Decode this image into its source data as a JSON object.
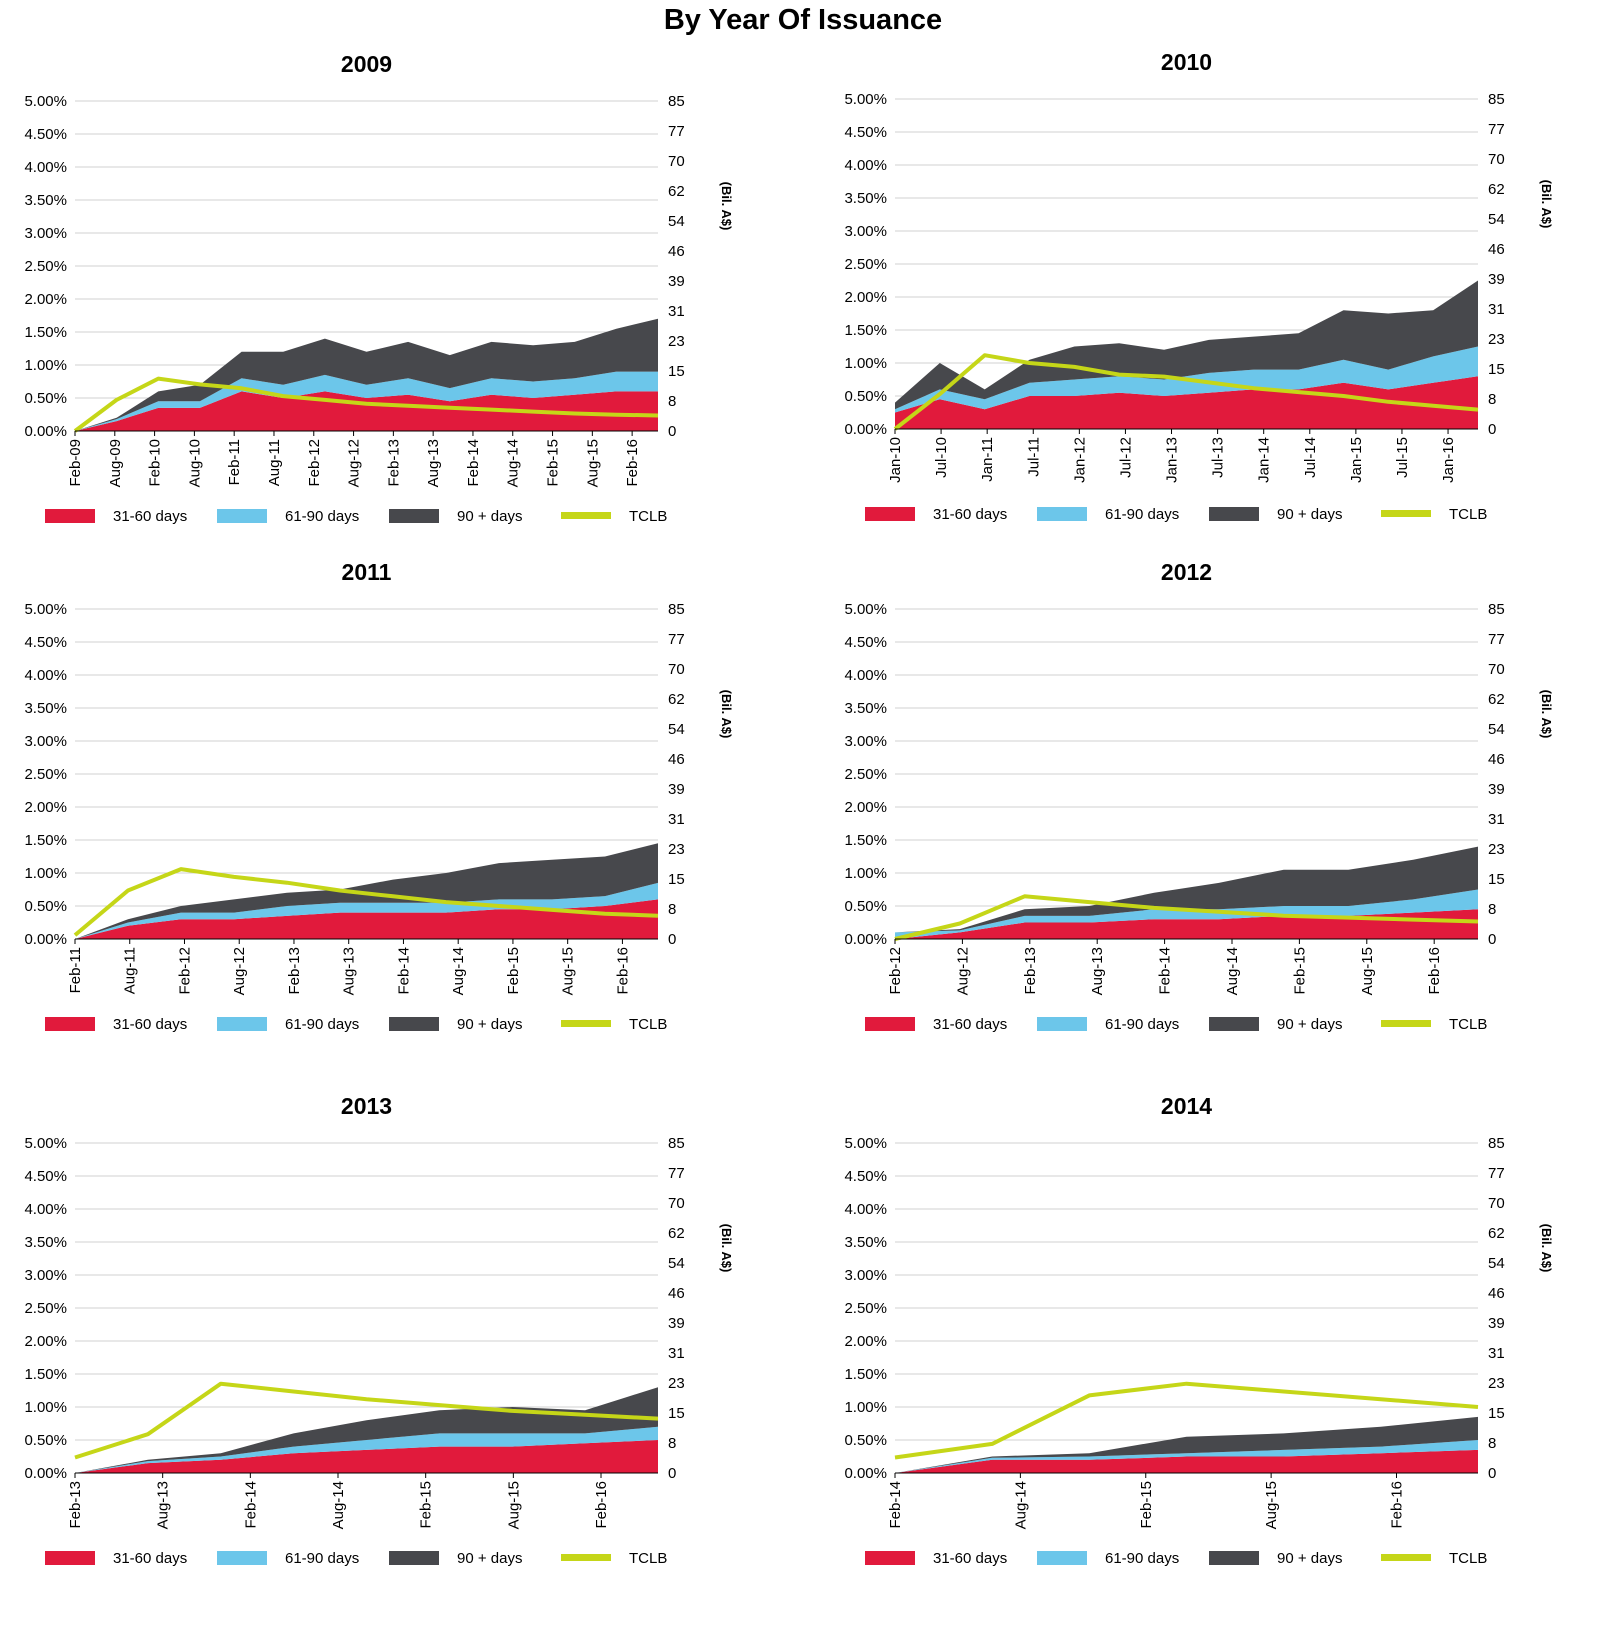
{
  "page": {
    "title": "By Year Of Issuance"
  },
  "legend": {
    "items": [
      {
        "key": "d31_60",
        "label": "31-60 days",
        "color": "#e11a3c"
      },
      {
        "key": "d61_90",
        "label": "61-90 days",
        "color": "#6cc6ea"
      },
      {
        "key": "d90p",
        "label": "90 + days",
        "color": "#47484c"
      },
      {
        "key": "tclb",
        "label": "TCLB",
        "color": "#c5d618",
        "line": true
      }
    ]
  },
  "colors": {
    "grid": "#d0d0d0",
    "axis": "#000000"
  },
  "chart_data": [
    {
      "type": "area",
      "title": "2009",
      "left_axis": {
        "min": 0,
        "max": 5,
        "ticks": [
          "5.00%",
          "4.50%",
          "4.00%",
          "3.50%",
          "3.00%",
          "2.50%",
          "2.00%",
          "1.50%",
          "1.00%",
          "0.50%",
          "0.00%"
        ]
      },
      "right_axis": {
        "label": "(Bil. A$)",
        "min": 0,
        "max": 85,
        "ticks": [
          "85",
          "77",
          "70",
          "62",
          "54",
          "46",
          "39",
          "31",
          "23",
          "15",
          "8",
          "0"
        ]
      },
      "x_labels": [
        "Feb-09",
        "Aug-09",
        "Feb-10",
        "Aug-10",
        "Feb-11",
        "Aug-11",
        "Feb-12",
        "Aug-12",
        "Feb-13",
        "Aug-13",
        "Feb-14",
        "Aug-14",
        "Feb-15",
        "Aug-15",
        "Feb-16"
      ],
      "n_points": 15,
      "series": [
        {
          "name": "31-60 days",
          "key": "d31_60",
          "values": [
            0.0,
            0.15,
            0.35,
            0.35,
            0.6,
            0.5,
            0.6,
            0.5,
            0.55,
            0.45,
            0.55,
            0.5,
            0.55,
            0.6,
            0.6
          ]
        },
        {
          "name": "61-90 days",
          "key": "d61_90",
          "values": [
            0.0,
            0.03,
            0.1,
            0.1,
            0.2,
            0.2,
            0.25,
            0.2,
            0.25,
            0.2,
            0.25,
            0.25,
            0.25,
            0.3,
            0.3
          ]
        },
        {
          "name": "90 + days",
          "key": "d90p",
          "values": [
            0.0,
            0.02,
            0.15,
            0.25,
            0.4,
            0.5,
            0.55,
            0.5,
            0.55,
            0.5,
            0.55,
            0.55,
            0.55,
            0.65,
            0.8
          ]
        },
        {
          "name": "TCLB",
          "key": "tclb",
          "values": [
            0.0,
            8.0,
            13.5,
            12.0,
            11.0,
            9.0,
            8.0,
            7.0,
            6.5,
            6.0,
            5.5,
            5.0,
            4.5,
            4.2,
            4.0
          ]
        }
      ]
    },
    {
      "type": "area",
      "title": "2010",
      "left_axis": {
        "min": 0,
        "max": 5,
        "ticks": [
          "5.00%",
          "4.50%",
          "4.00%",
          "3.50%",
          "3.00%",
          "2.50%",
          "2.00%",
          "1.50%",
          "1.00%",
          "0.50%",
          "0.00%"
        ]
      },
      "right_axis": {
        "label": "(Bil. A$)",
        "min": 0,
        "max": 85,
        "ticks": [
          "85",
          "77",
          "70",
          "62",
          "54",
          "46",
          "39",
          "31",
          "23",
          "15",
          "8",
          "0"
        ]
      },
      "x_labels": [
        "Jan-10",
        "Jul-10",
        "Jan-11",
        "Jul-11",
        "Jan-12",
        "Jul-12",
        "Jan-13",
        "Jul-13",
        "Jan-14",
        "Jul-14",
        "Jan-15",
        "Jul-15",
        "Jan-16"
      ],
      "n_points": 14,
      "series": [
        {
          "name": "31-60 days",
          "key": "d31_60",
          "values": [
            0.25,
            0.45,
            0.3,
            0.5,
            0.5,
            0.55,
            0.5,
            0.55,
            0.6,
            0.6,
            0.7,
            0.6,
            0.7,
            0.8
          ]
        },
        {
          "name": "61-90 days",
          "key": "d61_90",
          "values": [
            0.05,
            0.15,
            0.15,
            0.2,
            0.25,
            0.25,
            0.25,
            0.3,
            0.3,
            0.3,
            0.35,
            0.3,
            0.4,
            0.45
          ]
        },
        {
          "name": "90 + days",
          "key": "d90p",
          "values": [
            0.1,
            0.4,
            0.15,
            0.35,
            0.5,
            0.5,
            0.45,
            0.5,
            0.5,
            0.55,
            0.75,
            0.85,
            0.7,
            1.0
          ]
        },
        {
          "name": "TCLB",
          "key": "tclb",
          "values": [
            0.0,
            9.0,
            19.0,
            17.0,
            16.0,
            14.0,
            13.5,
            12.0,
            10.5,
            9.5,
            8.5,
            7.0,
            6.0,
            5.0
          ]
        }
      ]
    },
    {
      "type": "area",
      "title": "2011",
      "left_axis": {
        "min": 0,
        "max": 5,
        "ticks": [
          "5.00%",
          "4.50%",
          "4.00%",
          "3.50%",
          "3.00%",
          "2.50%",
          "2.00%",
          "1.50%",
          "1.00%",
          "0.50%",
          "0.00%"
        ]
      },
      "right_axis": {
        "label": "(Bil. A$)",
        "min": 0,
        "max": 85,
        "ticks": [
          "85",
          "77",
          "70",
          "62",
          "54",
          "46",
          "39",
          "31",
          "23",
          "15",
          "8",
          "0"
        ]
      },
      "x_labels": [
        "Feb-11",
        "Aug-11",
        "Feb-12",
        "Aug-12",
        "Feb-13",
        "Aug-13",
        "Feb-14",
        "Aug-14",
        "Feb-15",
        "Aug-15",
        "Feb-16"
      ],
      "n_points": 12,
      "series": [
        {
          "name": "31-60 days",
          "key": "d31_60",
          "values": [
            0.0,
            0.2,
            0.3,
            0.3,
            0.35,
            0.4,
            0.4,
            0.4,
            0.45,
            0.45,
            0.5,
            0.6
          ]
        },
        {
          "name": "61-90 days",
          "key": "d61_90",
          "values": [
            0.0,
            0.05,
            0.1,
            0.1,
            0.15,
            0.15,
            0.15,
            0.15,
            0.15,
            0.15,
            0.15,
            0.25
          ]
        },
        {
          "name": "90 + days",
          "key": "d90p",
          "values": [
            0.0,
            0.05,
            0.1,
            0.2,
            0.2,
            0.2,
            0.35,
            0.45,
            0.55,
            0.6,
            0.6,
            0.6
          ]
        },
        {
          "name": "TCLB",
          "key": "tclb",
          "values": [
            1.0,
            12.5,
            18.0,
            16.0,
            14.5,
            12.5,
            11.0,
            9.5,
            8.5,
            7.5,
            6.5,
            6.0
          ]
        }
      ]
    },
    {
      "type": "area",
      "title": "2012",
      "left_axis": {
        "min": 0,
        "max": 5,
        "ticks": [
          "5.00%",
          "4.50%",
          "4.00%",
          "3.50%",
          "3.00%",
          "2.50%",
          "2.00%",
          "1.50%",
          "1.00%",
          "0.50%",
          "0.00%"
        ]
      },
      "right_axis": {
        "label": "(Bil. A$)",
        "min": 0,
        "max": 85,
        "ticks": [
          "85",
          "77",
          "70",
          "62",
          "54",
          "46",
          "39",
          "31",
          "23",
          "15",
          "8",
          "0"
        ]
      },
      "x_labels": [
        "Feb-12",
        "Aug-12",
        "Feb-13",
        "Aug-13",
        "Feb-14",
        "Aug-14",
        "Feb-15",
        "Aug-15",
        "Feb-16"
      ],
      "n_points": 10,
      "series": [
        {
          "name": "31-60 days",
          "key": "d31_60",
          "values": [
            0.0,
            0.1,
            0.25,
            0.25,
            0.3,
            0.3,
            0.35,
            0.35,
            0.4,
            0.45
          ]
        },
        {
          "name": "61-90 days",
          "key": "d61_90",
          "values": [
            0.1,
            0.03,
            0.1,
            0.1,
            0.15,
            0.15,
            0.15,
            0.15,
            0.2,
            0.3
          ]
        },
        {
          "name": "90 + days",
          "key": "d90p",
          "values": [
            0.0,
            0.02,
            0.1,
            0.15,
            0.25,
            0.4,
            0.55,
            0.55,
            0.6,
            0.65
          ]
        },
        {
          "name": "TCLB",
          "key": "tclb",
          "values": [
            0.0,
            4.0,
            11.0,
            9.5,
            8.0,
            7.0,
            6.0,
            5.5,
            5.0,
            4.5
          ]
        }
      ]
    },
    {
      "type": "area",
      "title": "2013",
      "left_axis": {
        "min": 0,
        "max": 5,
        "ticks": [
          "5.00%",
          "4.50%",
          "4.00%",
          "3.50%",
          "3.00%",
          "2.50%",
          "2.00%",
          "1.50%",
          "1.00%",
          "0.50%",
          "0.00%"
        ]
      },
      "right_axis": {
        "label": "(Bil. A$)",
        "min": 0,
        "max": 85,
        "ticks": [
          "85",
          "77",
          "70",
          "62",
          "54",
          "46",
          "39",
          "31",
          "23",
          "15",
          "8",
          "0"
        ]
      },
      "x_labels": [
        "Feb-13",
        "Aug-13",
        "Feb-14",
        "Aug-14",
        "Feb-15",
        "Aug-15",
        "Feb-16"
      ],
      "n_points": 9,
      "series": [
        {
          "name": "31-60 days",
          "key": "d31_60",
          "values": [
            0.0,
            0.15,
            0.2,
            0.3,
            0.35,
            0.4,
            0.4,
            0.45,
            0.5
          ]
        },
        {
          "name": "61-90 days",
          "key": "d61_90",
          "values": [
            0.0,
            0.03,
            0.05,
            0.1,
            0.15,
            0.2,
            0.2,
            0.15,
            0.2
          ]
        },
        {
          "name": "90 + days",
          "key": "d90p",
          "values": [
            0.0,
            0.02,
            0.05,
            0.2,
            0.3,
            0.35,
            0.4,
            0.35,
            0.6
          ]
        },
        {
          "name": "TCLB",
          "key": "tclb",
          "values": [
            4.0,
            10.0,
            23.0,
            21.0,
            19.0,
            17.5,
            16.0,
            15.0,
            14.0
          ]
        }
      ]
    },
    {
      "type": "area",
      "title": "2014",
      "left_axis": {
        "min": 0,
        "max": 5,
        "ticks": [
          "5.00%",
          "4.50%",
          "4.00%",
          "3.50%",
          "3.00%",
          "2.50%",
          "2.00%",
          "1.50%",
          "1.00%",
          "0.50%",
          "0.00%"
        ]
      },
      "right_axis": {
        "label": "(Bil. A$)",
        "min": 0,
        "max": 85,
        "ticks": [
          "85",
          "77",
          "70",
          "62",
          "54",
          "46",
          "39",
          "31",
          "23",
          "15",
          "8",
          "0"
        ]
      },
      "x_labels": [
        "Feb-14",
        "Aug-14",
        "Feb-15",
        "Aug-15",
        "Feb-16"
      ],
      "n_points": 7,
      "series": [
        {
          "name": "31-60 days",
          "key": "d31_60",
          "values": [
            0.0,
            0.2,
            0.2,
            0.25,
            0.25,
            0.3,
            0.35
          ]
        },
        {
          "name": "61-90 days",
          "key": "d61_90",
          "values": [
            0.0,
            0.03,
            0.05,
            0.05,
            0.1,
            0.1,
            0.15
          ]
        },
        {
          "name": "90 + days",
          "key": "d90p",
          "values": [
            0.0,
            0.02,
            0.05,
            0.25,
            0.25,
            0.3,
            0.35
          ]
        },
        {
          "name": "TCLB",
          "key": "tclb",
          "values": [
            4.0,
            7.5,
            20.0,
            23.0,
            21.0,
            19.0,
            17.0
          ]
        }
      ]
    }
  ]
}
